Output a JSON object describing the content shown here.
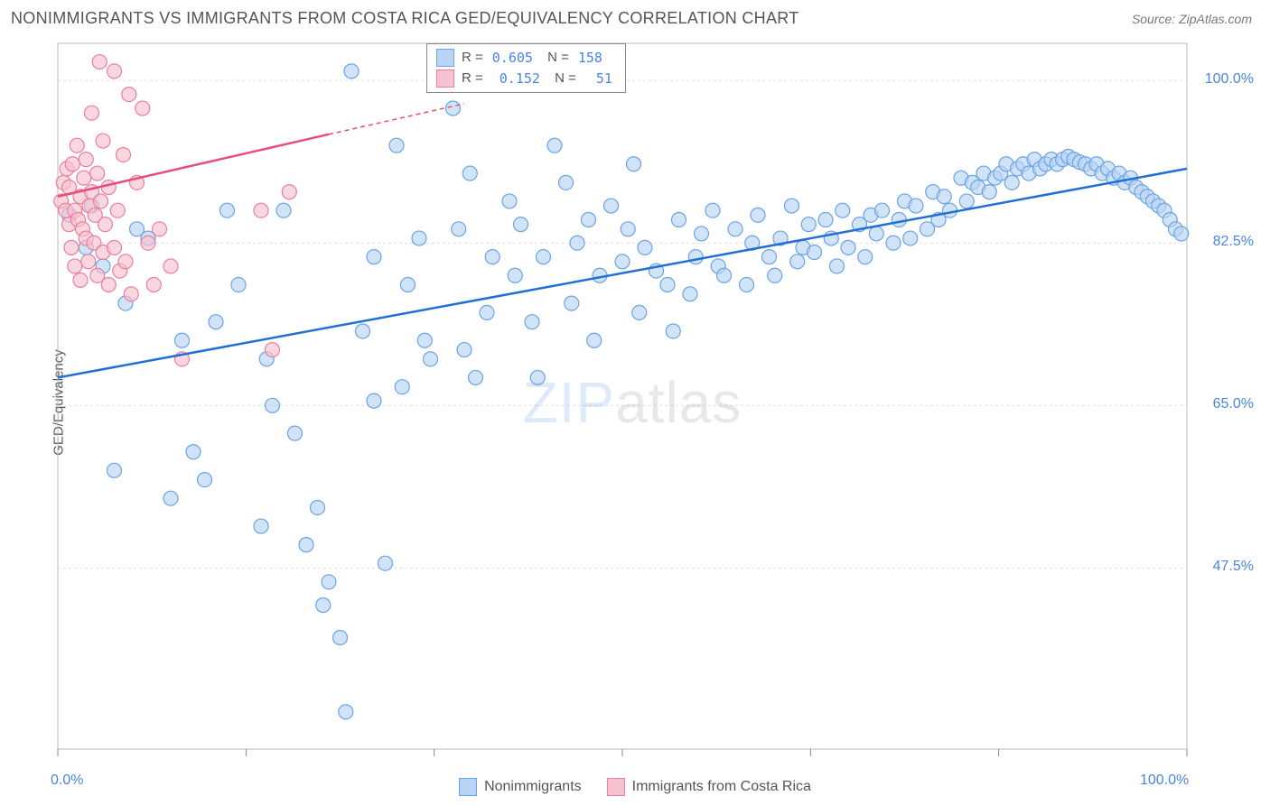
{
  "header": {
    "title": "NONIMMIGRANTS VS IMMIGRANTS FROM COSTA RICA GED/EQUIVALENCY CORRELATION CHART",
    "source": "Source: ZipAtlas.com"
  },
  "ylabel": "GED/Equivalency",
  "watermark": {
    "zip": "ZIP",
    "rest": "atlas"
  },
  "chart": {
    "type": "scatter",
    "background_color": "#ffffff",
    "plot_border_color": "#bbbbbb",
    "grid_color": "#dddddd",
    "grid_dash": "3,3",
    "xlim": [
      0,
      100
    ],
    "ylim": [
      28,
      104
    ],
    "x_ticks_major": [
      0,
      16.67,
      33.33,
      50,
      66.67,
      83.33,
      100
    ],
    "y_gridlines": [
      47.5,
      65.0,
      82.5,
      100.0
    ],
    "x_axis_labels": [
      {
        "x": 0,
        "text": "0.0%"
      },
      {
        "x": 100,
        "text": "100.0%"
      }
    ],
    "y_axis_labels": [
      {
        "y": 47.5,
        "text": "47.5%"
      },
      {
        "y": 65.0,
        "text": "65.0%"
      },
      {
        "y": 82.5,
        "text": "82.5%"
      },
      {
        "y": 100.0,
        "text": "100.0%"
      }
    ],
    "marker_radius": 8,
    "marker_stroke_width": 1.2,
    "series": [
      {
        "name": "Nonimmigrants",
        "fill": "#b9d4f2",
        "stroke": "#6aa3e8",
        "fill_opacity": 0.65,
        "stats": {
          "R": "0.605",
          "N": "158"
        },
        "trend": {
          "color": "#1f6fd4",
          "width": 2.5,
          "x1": 0,
          "y1": 68,
          "x2": 100,
          "y2": 90.5,
          "dash": null
        },
        "points": [
          [
            1,
            85.5
          ],
          [
            2.5,
            82
          ],
          [
            3,
            86.5
          ],
          [
            4,
            80
          ],
          [
            5,
            58
          ],
          [
            6,
            76
          ],
          [
            7,
            84
          ],
          [
            8,
            83
          ],
          [
            10,
            55
          ],
          [
            11,
            72
          ],
          [
            12,
            60
          ],
          [
            13,
            57
          ],
          [
            14,
            74
          ],
          [
            15,
            86
          ],
          [
            16,
            78
          ],
          [
            18,
            52
          ],
          [
            18.5,
            70
          ],
          [
            19,
            65
          ],
          [
            20,
            86
          ],
          [
            21,
            62
          ],
          [
            22,
            50
          ],
          [
            23,
            54
          ],
          [
            23.5,
            43.5
          ],
          [
            24,
            46
          ],
          [
            25,
            40
          ],
          [
            25.5,
            32
          ],
          [
            26,
            101
          ],
          [
            27,
            73
          ],
          [
            28,
            81
          ],
          [
            28,
            65.5
          ],
          [
            29,
            48
          ],
          [
            30,
            93
          ],
          [
            30.5,
            67
          ],
          [
            31,
            78
          ],
          [
            32,
            83
          ],
          [
            32.5,
            72
          ],
          [
            33,
            70
          ],
          [
            35,
            97
          ],
          [
            35.5,
            84
          ],
          [
            36,
            71
          ],
          [
            36.5,
            90
          ],
          [
            37,
            68
          ],
          [
            38,
            75
          ],
          [
            38.5,
            81
          ],
          [
            40,
            87
          ],
          [
            40.5,
            79
          ],
          [
            41,
            84.5
          ],
          [
            42,
            74
          ],
          [
            42.5,
            68
          ],
          [
            43,
            81
          ],
          [
            44,
            93
          ],
          [
            45,
            89
          ],
          [
            45.5,
            76
          ],
          [
            46,
            82.5
          ],
          [
            47,
            85
          ],
          [
            47.5,
            72
          ],
          [
            48,
            79
          ],
          [
            49,
            86.5
          ],
          [
            50,
            80.5
          ],
          [
            50.5,
            84
          ],
          [
            51,
            91
          ],
          [
            51.5,
            75
          ],
          [
            52,
            82
          ],
          [
            53,
            79.5
          ],
          [
            54,
            78
          ],
          [
            54.5,
            73
          ],
          [
            55,
            85
          ],
          [
            56,
            77
          ],
          [
            56.5,
            81
          ],
          [
            57,
            83.5
          ],
          [
            58,
            86
          ],
          [
            58.5,
            80
          ],
          [
            59,
            79
          ],
          [
            60,
            84
          ],
          [
            61,
            78
          ],
          [
            61.5,
            82.5
          ],
          [
            62,
            85.5
          ],
          [
            63,
            81
          ],
          [
            63.5,
            79
          ],
          [
            64,
            83
          ],
          [
            65,
            86.5
          ],
          [
            65.5,
            80.5
          ],
          [
            66,
            82
          ],
          [
            66.5,
            84.5
          ],
          [
            67,
            81.5
          ],
          [
            68,
            85
          ],
          [
            68.5,
            83
          ],
          [
            69,
            80
          ],
          [
            69.5,
            86
          ],
          [
            70,
            82
          ],
          [
            71,
            84.5
          ],
          [
            71.5,
            81
          ],
          [
            72,
            85.5
          ],
          [
            72.5,
            83.5
          ],
          [
            73,
            86
          ],
          [
            74,
            82.5
          ],
          [
            74.5,
            85
          ],
          [
            75,
            87
          ],
          [
            75.5,
            83
          ],
          [
            76,
            86.5
          ],
          [
            77,
            84
          ],
          [
            77.5,
            88
          ],
          [
            78,
            85
          ],
          [
            78.5,
            87.5
          ],
          [
            79,
            86
          ],
          [
            80,
            89.5
          ],
          [
            80.5,
            87
          ],
          [
            81,
            89
          ],
          [
            81.5,
            88.5
          ],
          [
            82,
            90
          ],
          [
            82.5,
            88
          ],
          [
            83,
            89.5
          ],
          [
            83.5,
            90
          ],
          [
            84,
            91
          ],
          [
            84.5,
            89
          ],
          [
            85,
            90.5
          ],
          [
            85.5,
            91
          ],
          [
            86,
            90
          ],
          [
            86.5,
            91.5
          ],
          [
            87,
            90.5
          ],
          [
            87.5,
            91
          ],
          [
            88,
            91.5
          ],
          [
            88.5,
            91
          ],
          [
            89,
            91.5
          ],
          [
            89.5,
            91.8
          ],
          [
            90,
            91.5
          ],
          [
            90.5,
            91.2
          ],
          [
            91,
            91
          ],
          [
            91.5,
            90.5
          ],
          [
            92,
            91
          ],
          [
            92.5,
            90
          ],
          [
            93,
            90.5
          ],
          [
            93.5,
            89.5
          ],
          [
            94,
            90
          ],
          [
            94.5,
            89
          ],
          [
            95,
            89.5
          ],
          [
            95.5,
            88.5
          ],
          [
            96,
            88
          ],
          [
            96.5,
            87.5
          ],
          [
            97,
            87
          ],
          [
            97.5,
            86.5
          ],
          [
            98,
            86
          ],
          [
            98.5,
            85
          ],
          [
            99,
            84
          ],
          [
            99.5,
            83.5
          ]
        ]
      },
      {
        "name": "Immigrants from Costa Rica",
        "fill": "#f6c2cf",
        "stroke": "#ed7e9a",
        "fill_opacity": 0.65,
        "stats": {
          "R": "0.152",
          "N": "51"
        },
        "trend": {
          "color": "#e84c7a",
          "width": 2.5,
          "x1": 0,
          "y1": 87.5,
          "x2": 24,
          "y2": 94.2,
          "dash": null
        },
        "trend_extend": {
          "color": "#e84c7a",
          "width": 1.5,
          "x1": 24,
          "y1": 94.2,
          "x2": 36,
          "y2": 97.5,
          "dash": "5,4"
        },
        "points": [
          [
            0.3,
            87
          ],
          [
            0.5,
            89
          ],
          [
            0.7,
            86
          ],
          [
            0.8,
            90.5
          ],
          [
            1,
            84.5
          ],
          [
            1,
            88.5
          ],
          [
            1.2,
            82
          ],
          [
            1.3,
            91
          ],
          [
            1.5,
            86
          ],
          [
            1.5,
            80
          ],
          [
            1.7,
            93
          ],
          [
            1.8,
            85
          ],
          [
            2,
            87.5
          ],
          [
            2,
            78.5
          ],
          [
            2.2,
            84
          ],
          [
            2.3,
            89.5
          ],
          [
            2.5,
            83
          ],
          [
            2.5,
            91.5
          ],
          [
            2.7,
            80.5
          ],
          [
            2.8,
            86.5
          ],
          [
            3,
            96.5
          ],
          [
            3,
            88
          ],
          [
            3.2,
            82.5
          ],
          [
            3.3,
            85.5
          ],
          [
            3.5,
            79
          ],
          [
            3.5,
            90
          ],
          [
            3.7,
            102
          ],
          [
            3.8,
            87
          ],
          [
            4,
            81.5
          ],
          [
            4,
            93.5
          ],
          [
            4.2,
            84.5
          ],
          [
            4.5,
            78
          ],
          [
            4.5,
            88.5
          ],
          [
            5,
            101
          ],
          [
            5,
            82
          ],
          [
            5.3,
            86
          ],
          [
            5.5,
            79.5
          ],
          [
            5.8,
            92
          ],
          [
            6,
            80.5
          ],
          [
            6.3,
            98.5
          ],
          [
            6.5,
            77
          ],
          [
            7,
            89
          ],
          [
            7.5,
            97
          ],
          [
            8,
            82.5
          ],
          [
            8.5,
            78
          ],
          [
            9,
            84
          ],
          [
            10,
            80
          ],
          [
            11,
            70
          ],
          [
            18,
            86
          ],
          [
            19,
            71
          ],
          [
            20.5,
            88
          ]
        ]
      }
    ]
  },
  "legend": {
    "bottom": [
      {
        "label": "Nonimmigrants",
        "fill": "#b9d4f2",
        "stroke": "#6aa3e8"
      },
      {
        "label": "Immigrants from Costa Rica",
        "fill": "#f6c2cf",
        "stroke": "#ed7e9a"
      }
    ]
  }
}
